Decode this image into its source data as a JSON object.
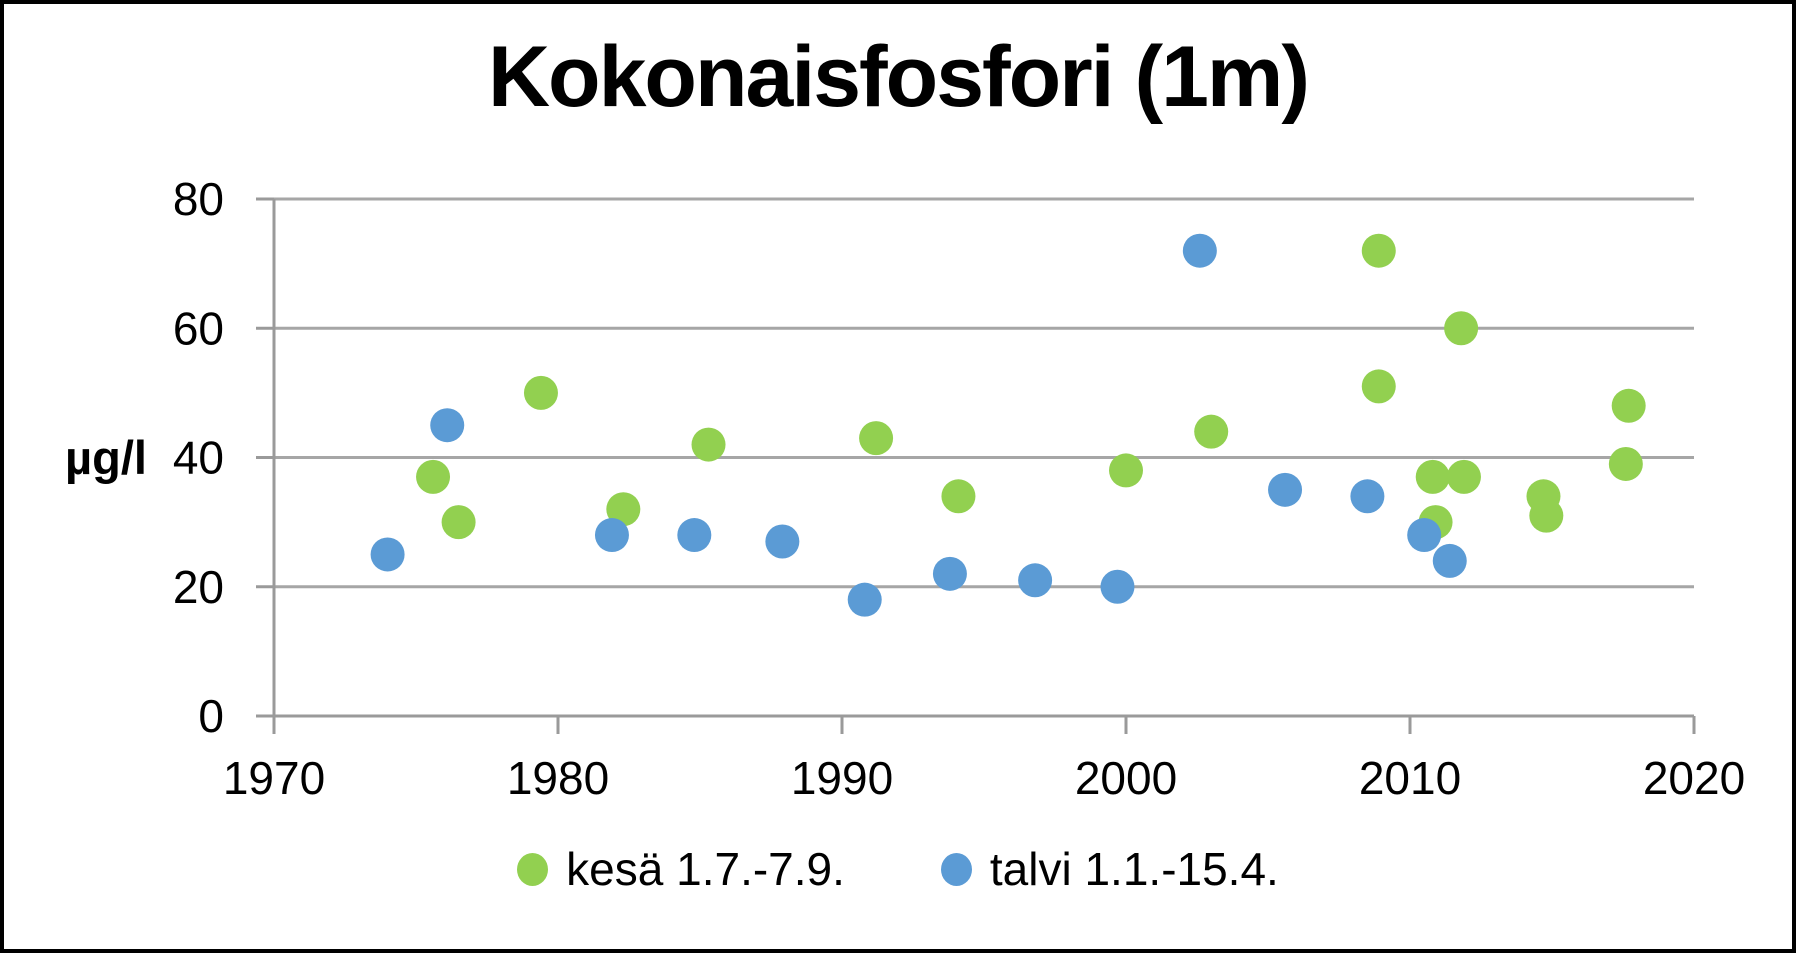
{
  "title": "Kokonaisfosfori (1m)",
  "ylabel": "µg/l",
  "legend": {
    "items": [
      {
        "label": "kesä 1.7.-7.9.",
        "color": "#92d050"
      },
      {
        "label": "talvi 1.1.-15.4.",
        "color": "#5b9bd5"
      }
    ]
  },
  "colors": {
    "summer": "#92d050",
    "winter": "#5b9bd5",
    "gridline": "#a6a6a6",
    "axis": "#9a9a9a",
    "text": "#000000",
    "frame": "#000000"
  },
  "chart_data": {
    "type": "scatter",
    "title": "Kokonaisfosfori (1m)",
    "xlabel": "",
    "ylabel": "µg/l",
    "xlim": [
      1970,
      2020
    ],
    "ylim": [
      0,
      80
    ],
    "x_ticks": [
      1970,
      1980,
      1990,
      2000,
      2010,
      2020
    ],
    "y_ticks": [
      0,
      20,
      40,
      60,
      80
    ],
    "grid": true,
    "legend_position": "bottom",
    "series": [
      {
        "name": "kesä 1.7.-7.9.",
        "color": "#92d050",
        "points": [
          [
            1975.6,
            37
          ],
          [
            1976.5,
            30
          ],
          [
            1979.4,
            50
          ],
          [
            1982.3,
            32
          ],
          [
            1985.3,
            42
          ],
          [
            1991.2,
            43
          ],
          [
            1994.1,
            34
          ],
          [
            2000.0,
            38
          ],
          [
            2003.0,
            44
          ],
          [
            2008.9,
            72
          ],
          [
            2008.9,
            51
          ],
          [
            2010.8,
            37
          ],
          [
            2010.9,
            30
          ],
          [
            2011.8,
            60
          ],
          [
            2011.9,
            37
          ],
          [
            2014.7,
            34
          ],
          [
            2014.8,
            31
          ],
          [
            2017.6,
            39
          ],
          [
            2017.7,
            48
          ]
        ]
      },
      {
        "name": "talvi 1.1.-15.4.",
        "color": "#5b9bd5",
        "points": [
          [
            1974.0,
            25
          ],
          [
            1976.1,
            45
          ],
          [
            1981.9,
            28
          ],
          [
            1984.8,
            28
          ],
          [
            1987.9,
            27
          ],
          [
            1990.8,
            18
          ],
          [
            1993.8,
            22
          ],
          [
            1996.8,
            21
          ],
          [
            1999.7,
            20
          ],
          [
            2002.6,
            72
          ],
          [
            2005.6,
            35
          ],
          [
            2008.5,
            34
          ],
          [
            2010.5,
            28
          ],
          [
            2011.4,
            24
          ]
        ]
      }
    ]
  }
}
